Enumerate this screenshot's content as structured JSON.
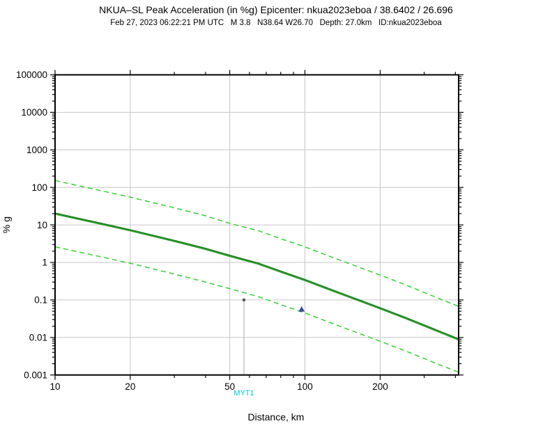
{
  "window": {
    "background": "#ffffff"
  },
  "chart_data": {
    "type": "line",
    "title": "NKUA–SL Peak Acceleration (in %g) Epicenter: nkua2023eboa / 38.6402 / 26.696",
    "subtitle": "Feb 27, 2023 06:22:21 PM UTC   M 3.8   N38.64 W26.70   Depth: 27.0km   ID:nkua2023eboa",
    "xlabel": "Distance, km",
    "ylabel": "% g",
    "x_scale": "log",
    "y_scale": "log",
    "xlim": [
      10,
      412
    ],
    "ylim": [
      0.001,
      100000
    ],
    "grid": true,
    "legend": "none",
    "x_ticks": {
      "values": [
        10,
        20,
        50,
        100,
        200
      ],
      "labels": [
        "10",
        "20",
        "50",
        "100",
        "200"
      ]
    },
    "y_ticks": {
      "values": [
        100000,
        10000,
        1000,
        100,
        10,
        1,
        0.1,
        0.01,
        0.001
      ],
      "labels": [
        "100000",
        "10000",
        "1000",
        "100",
        "10",
        "1",
        "0.1",
        "0.01",
        "0.001"
      ]
    },
    "x_gridlines": [
      20,
      50,
      100,
      200
    ],
    "y_gridlines": [
      10000,
      1000,
      100,
      10,
      1,
      0.1,
      0.01
    ],
    "series": [
      {
        "name": "median prediction",
        "style": "solid",
        "color": "#2aa02a",
        "x": [
          10,
          14,
          20,
          30,
          40,
          50,
          65,
          80,
          100,
          130,
          160,
          200,
          250,
          320,
          410
        ],
        "values": [
          20,
          12.2,
          7.2,
          3.75,
          2.3,
          1.5,
          0.93,
          0.57,
          0.34,
          0.175,
          0.105,
          0.06,
          0.034,
          0.0175,
          0.009
        ]
      },
      {
        "name": "plus one sigma bound",
        "style": "dashed",
        "color": "#3dd43d",
        "x": [
          10,
          14,
          20,
          30,
          40,
          50,
          65,
          80,
          100,
          130,
          160,
          200,
          250,
          320,
          410
        ],
        "values": [
          152,
          93,
          55,
          28.5,
          17.5,
          11.0,
          7.0,
          4.3,
          2.6,
          1.33,
          0.8,
          0.46,
          0.26,
          0.133,
          0.068
        ]
      },
      {
        "name": "minus one sigma bound",
        "style": "dashed",
        "color": "#3dd43d",
        "x": [
          10,
          14,
          20,
          30,
          40,
          50,
          65,
          80,
          100,
          130,
          160,
          200,
          250,
          320,
          410
        ],
        "values": [
          2.6,
          1.6,
          0.95,
          0.49,
          0.3,
          0.2,
          0.122,
          0.075,
          0.045,
          0.023,
          0.0138,
          0.0079,
          0.0045,
          0.0023,
          0.0012
        ]
      }
    ],
    "stations": [
      {
        "label": "MYT1",
        "distance_km": 57,
        "value_pct_g": 0.1,
        "marker": "gray-dot",
        "marker_color": "#5a5a5a",
        "label_color": "#00cdcd",
        "axis_line": true
      },
      {
        "label": "",
        "distance_km": 97,
        "value_pct_g": 0.056,
        "marker": "triangle",
        "marker_color": "#4646aa",
        "axis_line": false
      }
    ],
    "colors": {
      "frame": "#000000",
      "grid": "#c6c6c6",
      "median": "#2aa02a",
      "sigma_bounds": "#3dd43d",
      "station_line": "#a8a8a8",
      "station_label": "#00cdcd",
      "tick_text": "#000000"
    }
  }
}
